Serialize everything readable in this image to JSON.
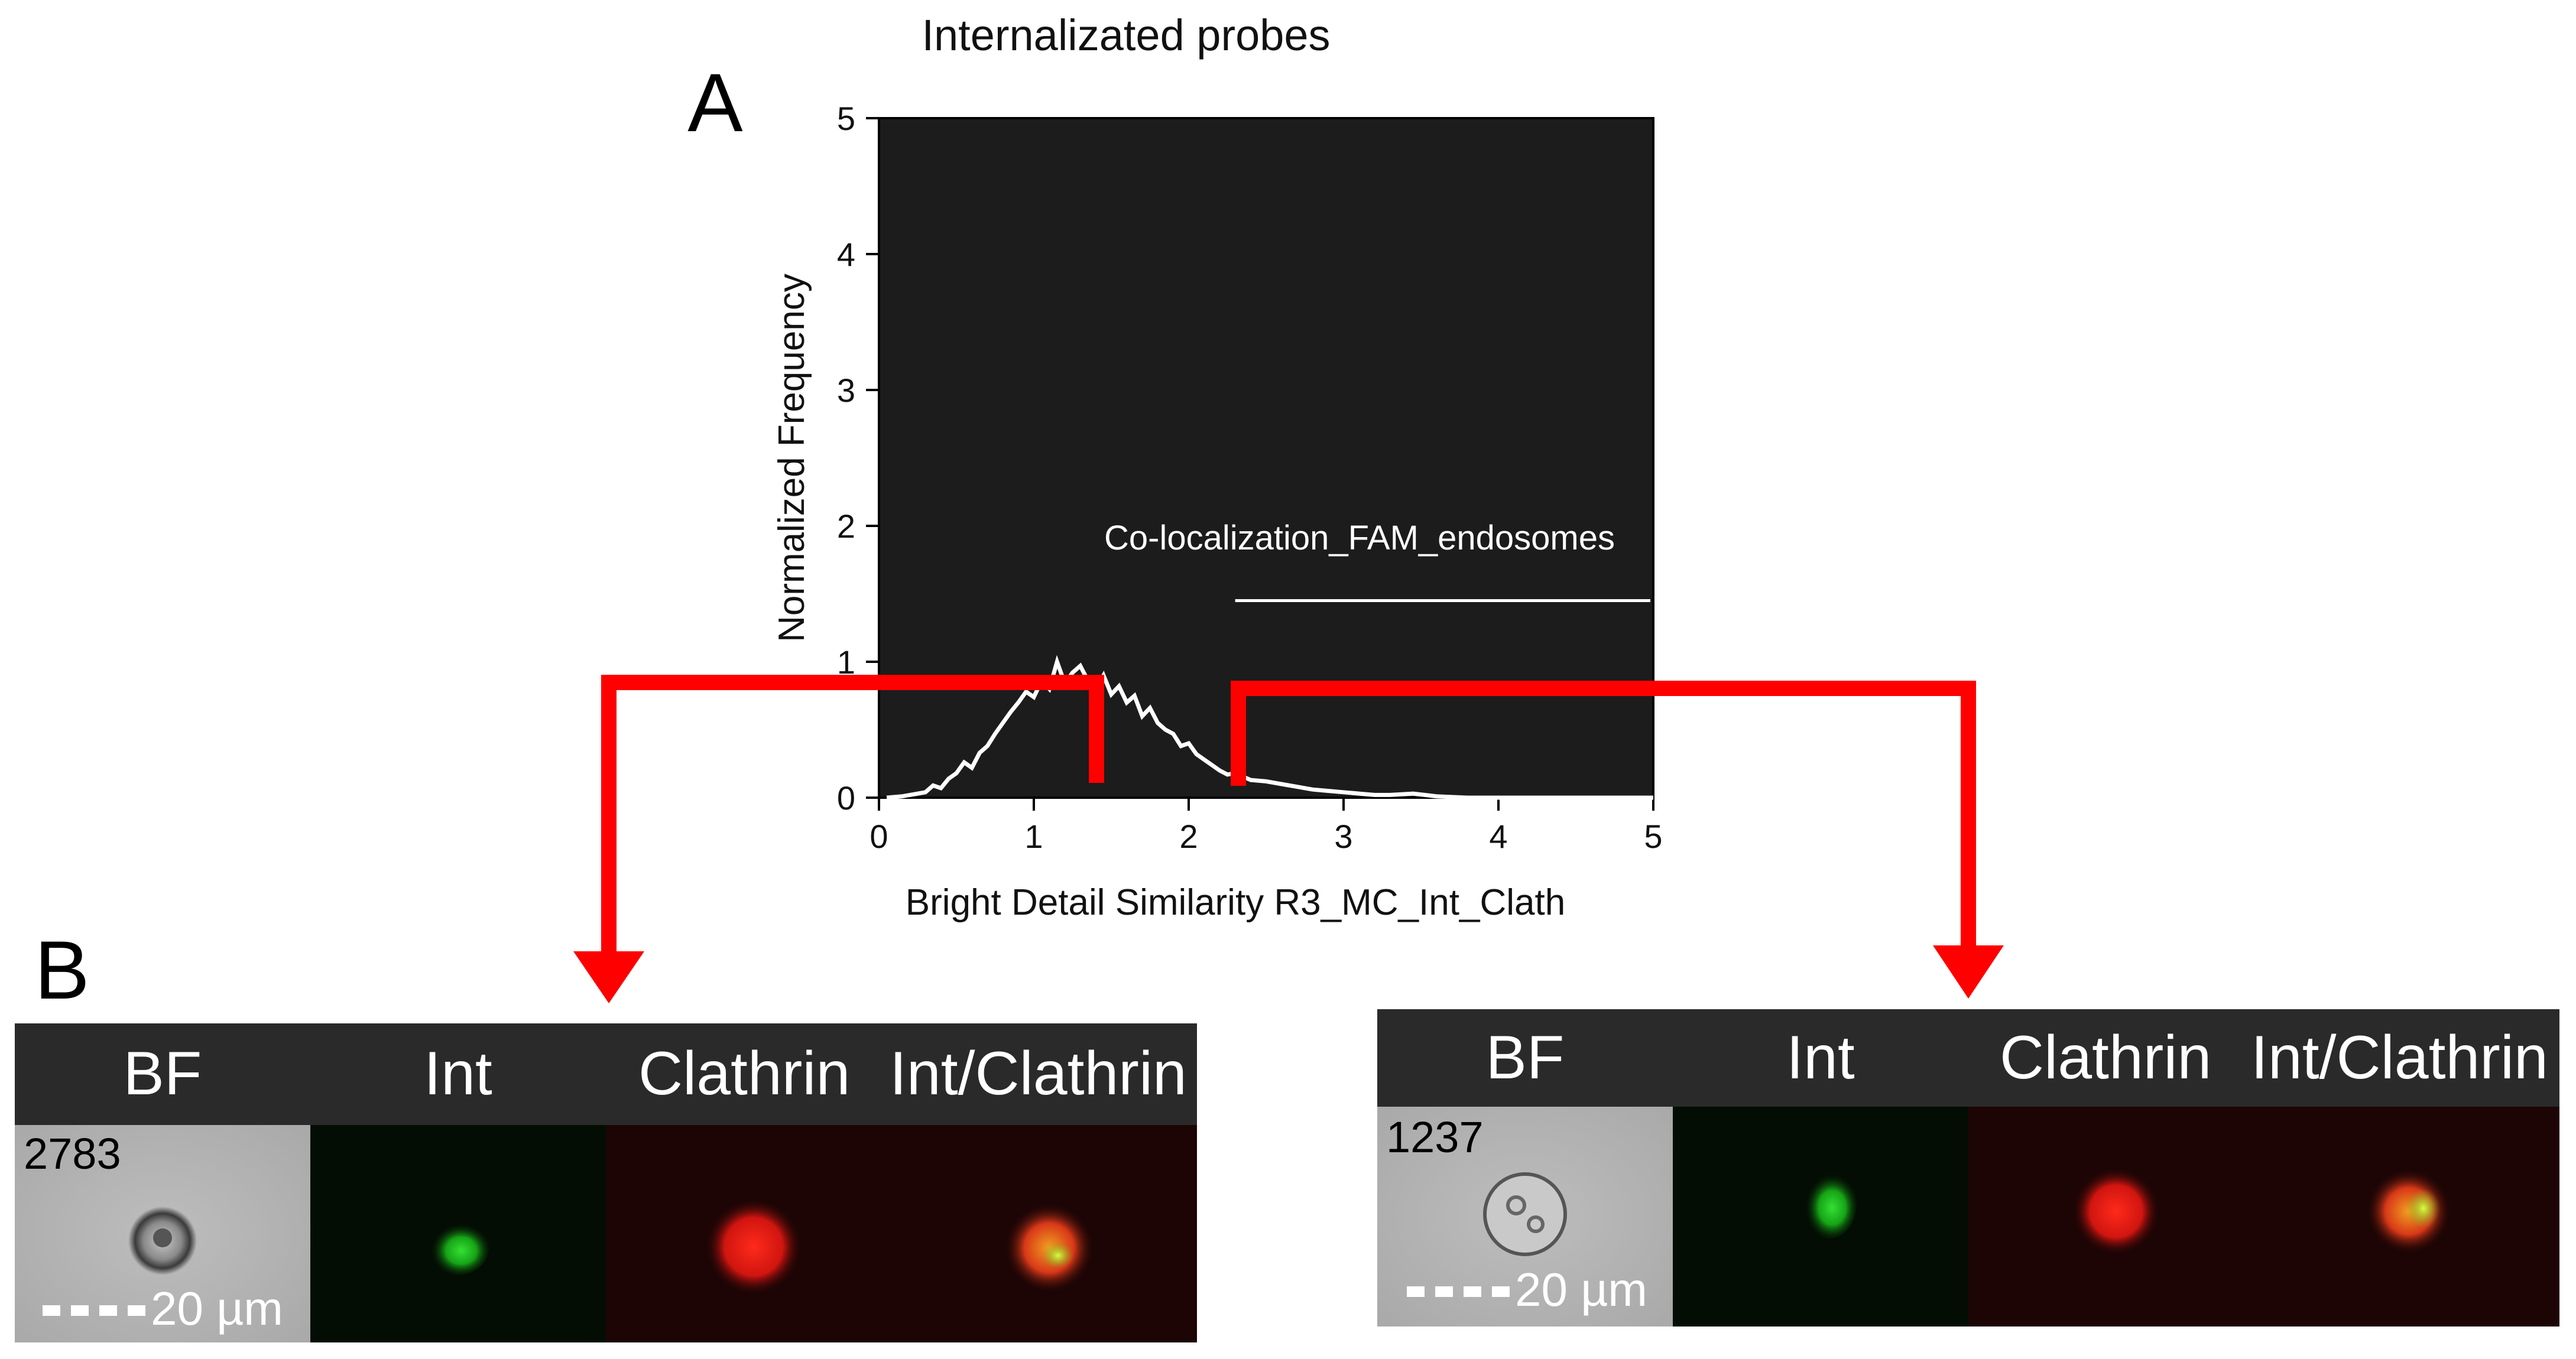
{
  "figure": {
    "panel_a_label": "A",
    "panel_b_label": "B"
  },
  "chart_data": {
    "type": "histogram",
    "title": "Internalizated probes",
    "xlabel": "Bright Detail Similarity R3_MC_Int_Clath",
    "ylabel": "Normalized Frequency",
    "xlim": [
      0,
      5
    ],
    "ylim": [
      0,
      5
    ],
    "xticks": [
      "0",
      "1",
      "2",
      "3",
      "4",
      "5"
    ],
    "yticks": [
      "0",
      "1",
      "2",
      "3",
      "4",
      "5"
    ],
    "background": "#1c1c1c",
    "line_color": "#ffffff",
    "gate": {
      "label": "Co-localization_FAM_endosomes",
      "x_start": 2.3,
      "x_end": 5.0,
      "y": 1.45
    },
    "points": [
      [
        0.05,
        0.0
      ],
      [
        0.15,
        0.01
      ],
      [
        0.2,
        0.02
      ],
      [
        0.3,
        0.04
      ],
      [
        0.35,
        0.09
      ],
      [
        0.4,
        0.07
      ],
      [
        0.45,
        0.14
      ],
      [
        0.5,
        0.18
      ],
      [
        0.55,
        0.26
      ],
      [
        0.6,
        0.22
      ],
      [
        0.65,
        0.33
      ],
      [
        0.7,
        0.38
      ],
      [
        0.75,
        0.47
      ],
      [
        0.8,
        0.55
      ],
      [
        0.85,
        0.63
      ],
      [
        0.9,
        0.7
      ],
      [
        0.95,
        0.78
      ],
      [
        1.0,
        0.74
      ],
      [
        1.05,
        0.86
      ],
      [
        1.1,
        0.8
      ],
      [
        1.15,
        1.0
      ],
      [
        1.2,
        0.84
      ],
      [
        1.25,
        0.92
      ],
      [
        1.3,
        0.97
      ],
      [
        1.35,
        0.86
      ],
      [
        1.4,
        0.8
      ],
      [
        1.45,
        0.9
      ],
      [
        1.5,
        0.76
      ],
      [
        1.55,
        0.82
      ],
      [
        1.6,
        0.7
      ],
      [
        1.65,
        0.75
      ],
      [
        1.7,
        0.6
      ],
      [
        1.75,
        0.66
      ],
      [
        1.8,
        0.55
      ],
      [
        1.85,
        0.5
      ],
      [
        1.9,
        0.47
      ],
      [
        1.95,
        0.38
      ],
      [
        2.0,
        0.4
      ],
      [
        2.05,
        0.32
      ],
      [
        2.1,
        0.28
      ],
      [
        2.15,
        0.24
      ],
      [
        2.2,
        0.2
      ],
      [
        2.25,
        0.17
      ],
      [
        2.3,
        0.18
      ],
      [
        2.4,
        0.13
      ],
      [
        2.5,
        0.12
      ],
      [
        2.6,
        0.1
      ],
      [
        2.7,
        0.08
      ],
      [
        2.8,
        0.06
      ],
      [
        2.9,
        0.05
      ],
      [
        3.0,
        0.04
      ],
      [
        3.1,
        0.03
      ],
      [
        3.2,
        0.02
      ],
      [
        3.3,
        0.02
      ],
      [
        3.45,
        0.03
      ],
      [
        3.6,
        0.01
      ],
      [
        3.8,
        0.0
      ],
      [
        4.2,
        0.0
      ],
      [
        5.0,
        0.0
      ]
    ]
  },
  "arrows": {
    "color": "#ff0000"
  },
  "strips": [
    {
      "headers": [
        "BF",
        "Int",
        "Clathrin",
        "Int/Clathrin"
      ],
      "event_id": "2783",
      "scale_label": "20 µm"
    },
    {
      "headers": [
        "BF",
        "Int",
        "Clathrin",
        "Int/Clathrin"
      ],
      "event_id": "1237",
      "scale_label": "20 µm"
    }
  ]
}
